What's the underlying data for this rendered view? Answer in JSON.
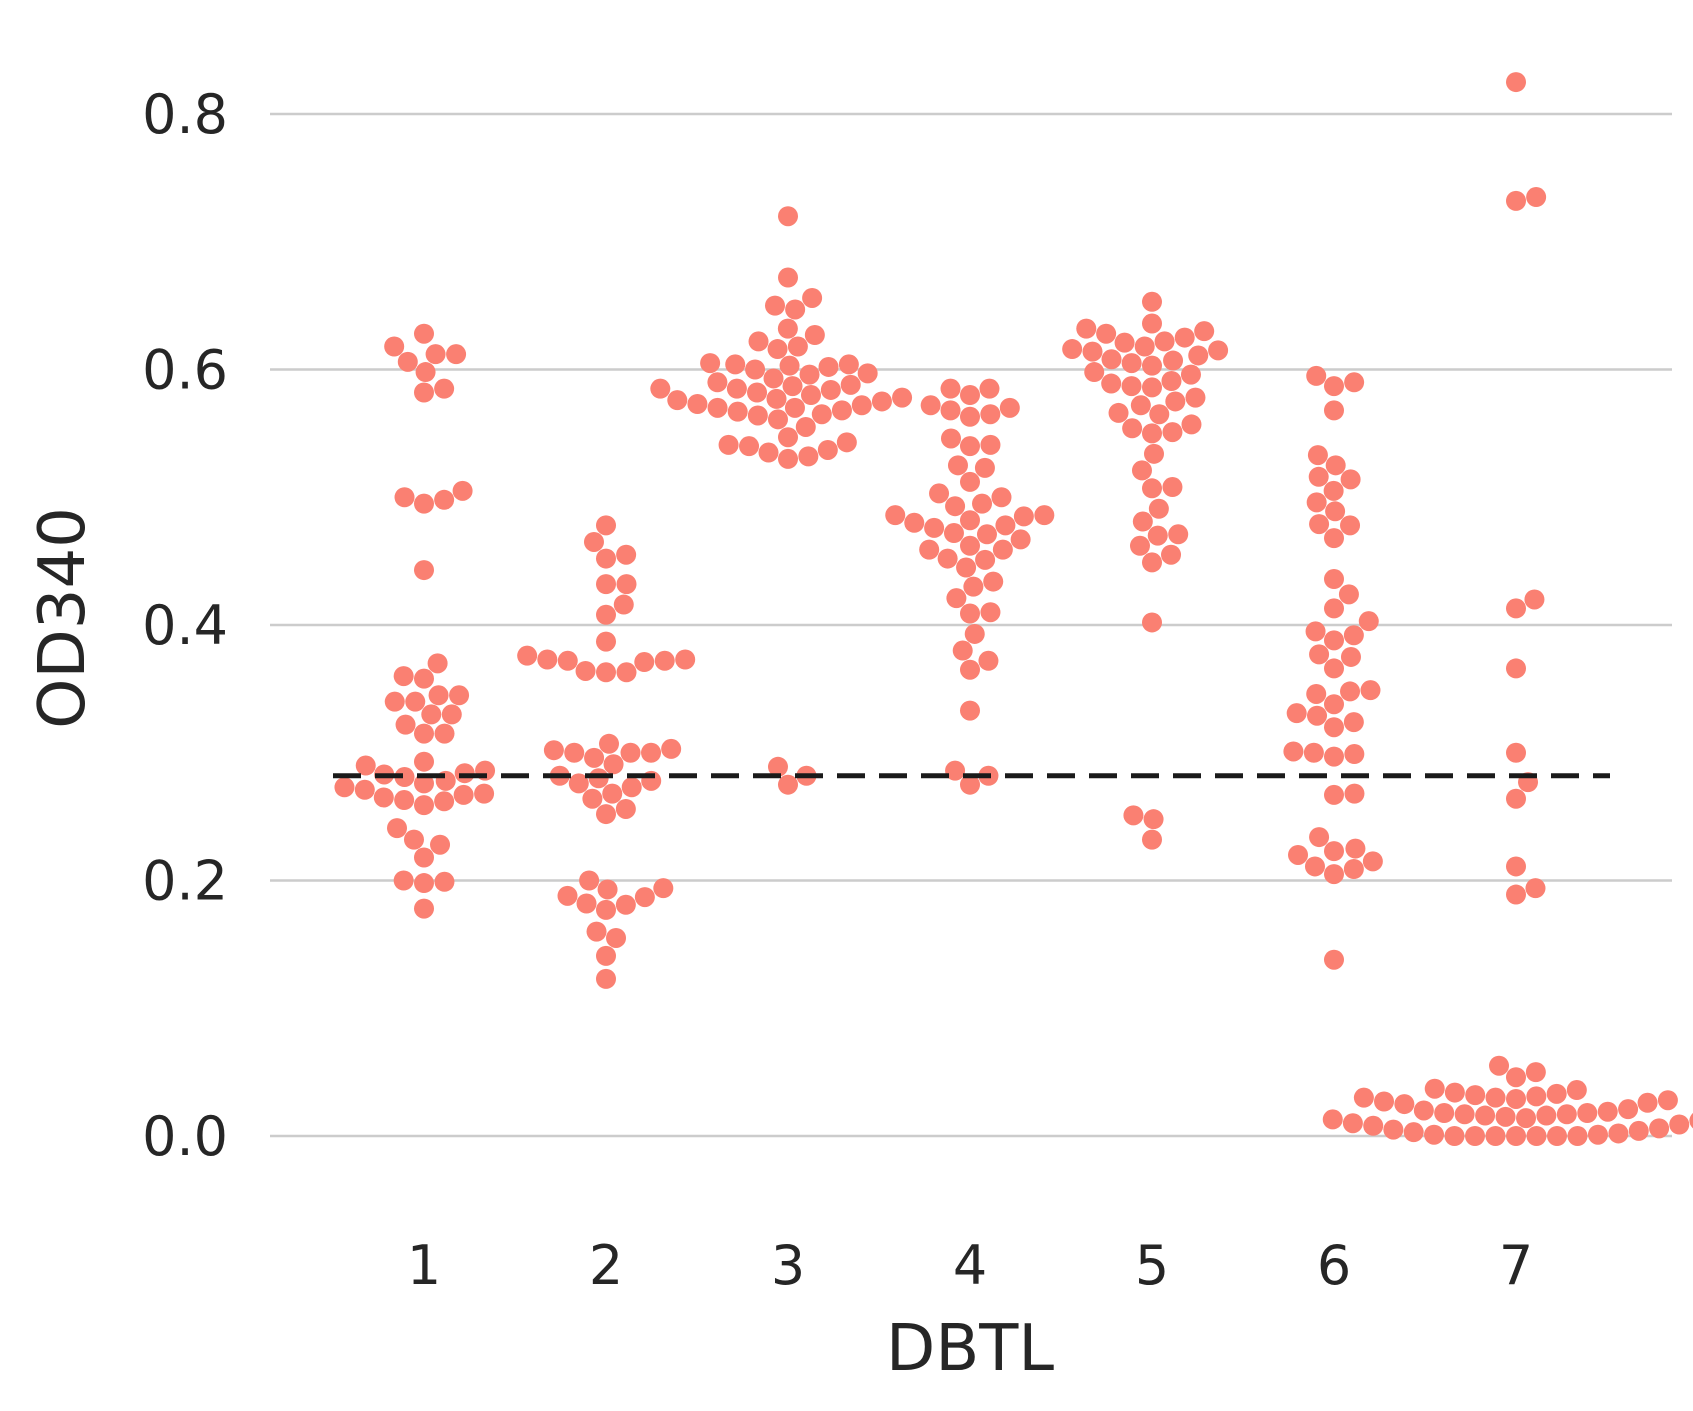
{
  "chart_data": {
    "type": "scatter",
    "subtype": "swarm",
    "xlabel": "DBTL",
    "ylabel": "OD340",
    "categories": [
      "1",
      "2",
      "3",
      "4",
      "5",
      "6",
      "7"
    ],
    "ylim": [
      -0.065,
      0.88
    ],
    "yticks": [
      "0.0",
      "0.2",
      "0.4",
      "0.6",
      "0.8"
    ],
    "grid": "horizontal",
    "legend": "none",
    "point_color": "#fa8072",
    "reference_line": {
      "y": 0.282,
      "style": "dashed",
      "color": "#1a1a1a"
    },
    "series": [
      {
        "category": "1",
        "values": [
          0.628,
          0.618,
          0.612,
          0.612,
          0.606,
          0.598,
          0.585,
          0.582,
          0.505,
          0.5,
          0.498,
          0.495,
          0.443,
          0.37,
          0.36,
          0.358,
          0.345,
          0.345,
          0.34,
          0.34,
          0.33,
          0.33,
          0.322,
          0.315,
          0.315,
          0.293,
          0.29,
          0.286,
          0.284,
          0.283,
          0.281,
          0.278,
          0.276,
          0.273,
          0.271,
          0.268,
          0.267,
          0.265,
          0.263,
          0.262,
          0.259,
          0.241,
          0.232,
          0.228,
          0.218,
          0.2,
          0.199,
          0.198,
          0.178
        ]
      },
      {
        "category": "2",
        "values": [
          0.478,
          0.465,
          0.455,
          0.452,
          0.432,
          0.432,
          0.416,
          0.408,
          0.387,
          0.376,
          0.373,
          0.373,
          0.372,
          0.372,
          0.371,
          0.364,
          0.363,
          0.363,
          0.307,
          0.303,
          0.302,
          0.3,
          0.3,
          0.3,
          0.296,
          0.291,
          0.282,
          0.28,
          0.278,
          0.276,
          0.273,
          0.268,
          0.264,
          0.256,
          0.252,
          0.2,
          0.194,
          0.193,
          0.188,
          0.187,
          0.182,
          0.181,
          0.177,
          0.16,
          0.155,
          0.141,
          0.123
        ]
      },
      {
        "category": "3",
        "values": [
          0.72,
          0.672,
          0.656,
          0.65,
          0.647,
          0.632,
          0.627,
          0.622,
          0.618,
          0.616,
          0.605,
          0.604,
          0.604,
          0.603,
          0.602,
          0.6,
          0.597,
          0.596,
          0.593,
          0.59,
          0.588,
          0.587,
          0.585,
          0.585,
          0.584,
          0.582,
          0.58,
          0.578,
          0.577,
          0.576,
          0.575,
          0.573,
          0.572,
          0.57,
          0.57,
          0.568,
          0.567,
          0.565,
          0.564,
          0.561,
          0.555,
          0.547,
          0.543,
          0.541,
          0.54,
          0.537,
          0.535,
          0.532,
          0.53,
          0.289,
          0.282,
          0.275
        ]
      },
      {
        "category": "4",
        "values": [
          0.585,
          0.585,
          0.58,
          0.572,
          0.57,
          0.568,
          0.565,
          0.563,
          0.546,
          0.541,
          0.54,
          0.525,
          0.523,
          0.512,
          0.503,
          0.5,
          0.495,
          0.493,
          0.486,
          0.486,
          0.485,
          0.482,
          0.48,
          0.478,
          0.476,
          0.472,
          0.471,
          0.467,
          0.462,
          0.459,
          0.459,
          0.452,
          0.451,
          0.445,
          0.434,
          0.43,
          0.421,
          0.41,
          0.409,
          0.393,
          0.38,
          0.372,
          0.365,
          0.333,
          0.286,
          0.282,
          0.275
        ]
      },
      {
        "category": "5",
        "values": [
          0.653,
          0.636,
          0.632,
          0.63,
          0.628,
          0.625,
          0.622,
          0.621,
          0.618,
          0.616,
          0.615,
          0.614,
          0.611,
          0.608,
          0.607,
          0.605,
          0.603,
          0.598,
          0.596,
          0.591,
          0.589,
          0.587,
          0.586,
          0.578,
          0.575,
          0.572,
          0.566,
          0.565,
          0.557,
          0.554,
          0.551,
          0.55,
          0.534,
          0.521,
          0.508,
          0.507,
          0.491,
          0.481,
          0.471,
          0.47,
          0.462,
          0.455,
          0.449,
          0.402,
          0.251,
          0.248,
          0.232
        ]
      },
      {
        "category": "6",
        "values": [
          0.595,
          0.59,
          0.587,
          0.568,
          0.533,
          0.525,
          0.516,
          0.514,
          0.505,
          0.496,
          0.489,
          0.479,
          0.478,
          0.468,
          0.436,
          0.424,
          0.413,
          0.403,
          0.395,
          0.392,
          0.388,
          0.377,
          0.375,
          0.366,
          0.349,
          0.348,
          0.346,
          0.338,
          0.331,
          0.329,
          0.324,
          0.32,
          0.301,
          0.3,
          0.299,
          0.297,
          0.268,
          0.267,
          0.234,
          0.225,
          0.223,
          0.22,
          0.215,
          0.211,
          0.209,
          0.205,
          0.138
        ]
      },
      {
        "category": "7",
        "values": [
          0.825,
          0.735,
          0.732,
          0.42,
          0.413,
          0.366,
          0.3,
          0.277,
          0.264,
          0.211,
          0.194,
          0.189,
          0.055,
          0.05,
          0.046,
          0.037,
          0.036,
          0.034,
          0.033,
          0.032,
          0.031,
          0.03,
          0.03,
          0.029,
          0.028,
          0.027,
          0.026,
          0.025,
          0.021,
          0.02,
          0.019,
          0.018,
          0.018,
          0.017,
          0.017,
          0.016,
          0.016,
          0.015,
          0.014,
          0.013,
          0.012,
          0.01,
          0.009,
          0.008,
          0.006,
          0.005,
          0.004,
          0.003,
          0.002,
          0.001,
          0.001,
          0.0,
          0.0,
          0.0,
          0.0,
          0.0,
          0.0,
          0.0
        ]
      }
    ]
  }
}
